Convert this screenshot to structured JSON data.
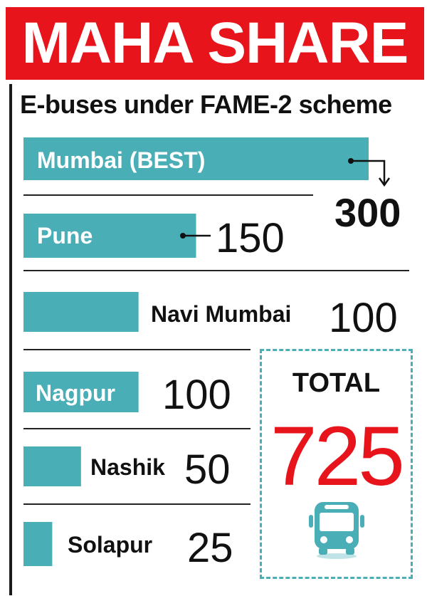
{
  "title": "MAHA SHARE",
  "subtitle": "E-buses under FAME-2 scheme",
  "colors": {
    "banner": "#e8141c",
    "bar": "#4aaeb6",
    "total_value": "#e8141c",
    "text": "#111111"
  },
  "chart_data": {
    "type": "bar",
    "orientation": "horizontal",
    "title": "MAHA SHARE",
    "subtitle": "E-buses under FAME-2 scheme",
    "categories": [
      "Mumbai (BEST)",
      "Pune",
      "Navi Mumbai",
      "Nagpur",
      "Nashik",
      "Solapur"
    ],
    "values": [
      300,
      150,
      100,
      100,
      50,
      25
    ],
    "value_labels": [
      "300",
      "150",
      "100",
      "100",
      "50",
      "25"
    ]
  },
  "total": {
    "label": "TOTAL",
    "value": "725",
    "icon": "bus-icon"
  }
}
